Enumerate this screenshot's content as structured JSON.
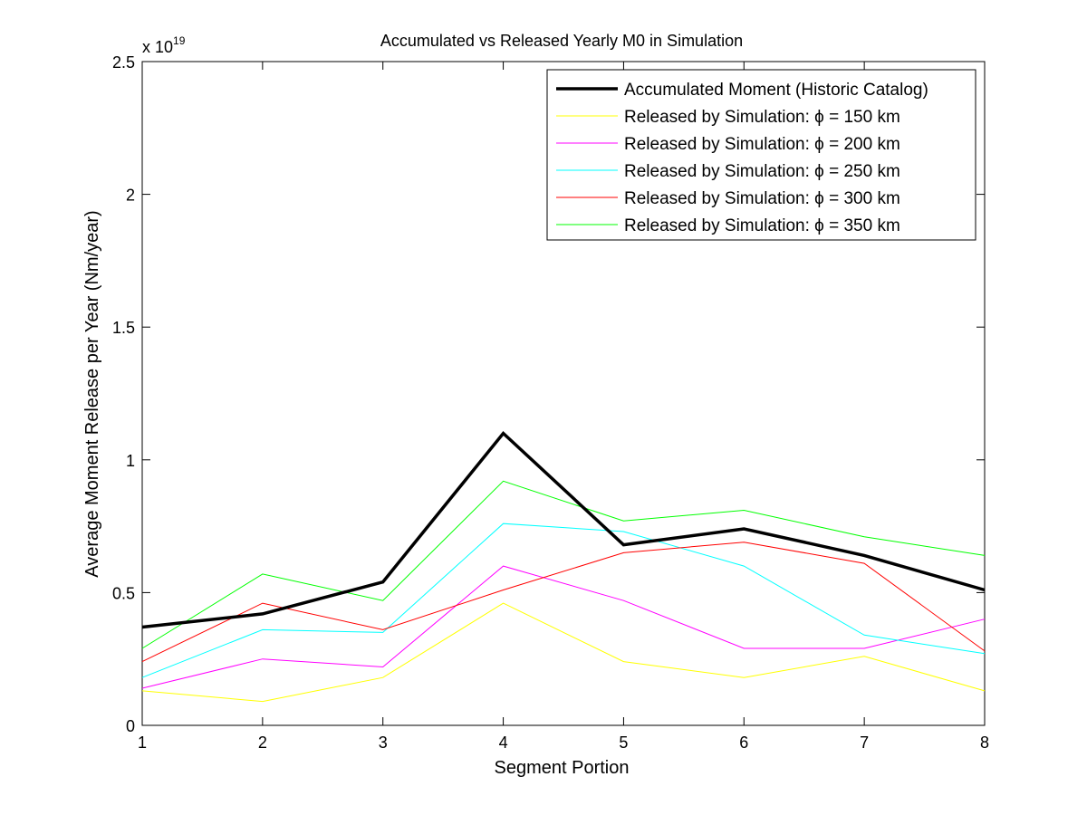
{
  "chart_data": {
    "type": "line",
    "title": "Accumulated vs Released Yearly M0 in Simulation",
    "xlabel": "Segment Portion",
    "ylabel": "Average Moment Release per Year (Nm/year)",
    "y_exponent_label": "x 10",
    "y_exponent_power": "19",
    "xlim": [
      1,
      8
    ],
    "ylim": [
      0,
      2.5
    ],
    "x_ticks": [
      "1",
      "2",
      "3",
      "4",
      "5",
      "6",
      "7",
      "8"
    ],
    "y_ticks": [
      "0",
      "0.5",
      "1",
      "1.5",
      "2",
      "2.5"
    ],
    "y_tick_values": [
      0,
      0.5,
      1,
      1.5,
      2,
      2.5
    ],
    "grid": false,
    "legend_position": "top-right",
    "x": [
      1,
      2,
      3,
      4,
      5,
      6,
      7,
      8
    ],
    "series": [
      {
        "name": "Accumulated Moment (Historic Catalog)",
        "color": "#000000",
        "width": "thick",
        "values": [
          0.37,
          0.42,
          0.54,
          1.1,
          0.68,
          0.74,
          0.64,
          0.51
        ]
      },
      {
        "name": "Released by Simulation: ϕ = 150 km",
        "color": "#ffff00",
        "width": "thin",
        "values": [
          0.13,
          0.09,
          0.18,
          0.46,
          0.24,
          0.18,
          0.26,
          0.13
        ]
      },
      {
        "name": "Released by Simulation: ϕ = 200 km",
        "color": "#ff00ff",
        "width": "thin",
        "values": [
          0.14,
          0.25,
          0.22,
          0.6,
          0.47,
          0.29,
          0.29,
          0.4
        ]
      },
      {
        "name": "Released by Simulation: ϕ = 250 km",
        "color": "#00ffff",
        "width": "thin",
        "values": [
          0.18,
          0.36,
          0.35,
          0.76,
          0.73,
          0.6,
          0.34,
          0.27
        ]
      },
      {
        "name": "Released by Simulation: ϕ = 300 km",
        "color": "#ff0000",
        "width": "thin",
        "values": [
          0.24,
          0.46,
          0.36,
          0.51,
          0.65,
          0.69,
          0.61,
          0.28
        ]
      },
      {
        "name": "Released by Simulation: ϕ = 350 km",
        "color": "#00ff00",
        "width": "thin",
        "values": [
          0.29,
          0.57,
          0.47,
          0.92,
          0.77,
          0.81,
          0.71,
          0.64
        ]
      }
    ]
  }
}
